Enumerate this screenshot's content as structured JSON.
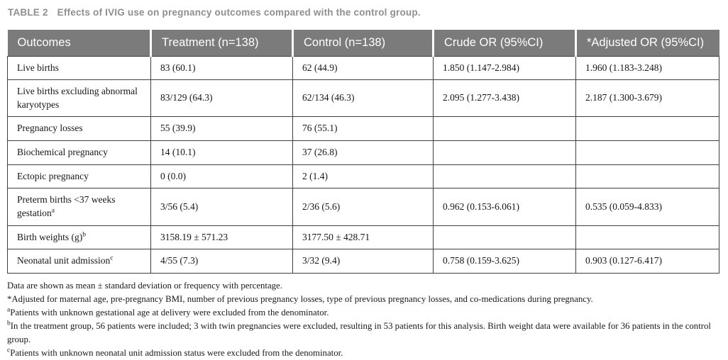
{
  "caption": {
    "label": "TABLE 2",
    "title": "Effects of IVIG use on pregnancy outcomes compared with the control group."
  },
  "table": {
    "columns": [
      "Outcomes",
      "Treatment (n=138)",
      "Control (n=138)",
      "Crude OR (95%CI)",
      "*Adjusted OR (95%CI)"
    ],
    "rows": [
      {
        "outcome": "Live births",
        "sup": "",
        "treatment": "83 (60.1)",
        "control": "62 (44.9)",
        "crude_or": "1.850 (1.147-2.984)",
        "adjusted_or": "1.960 (1.183-3.248)"
      },
      {
        "outcome": "Live births excluding abnormal karyotypes",
        "sup": "",
        "treatment": "83/129 (64.3)",
        "control": "62/134 (46.3)",
        "crude_or": "2.095 (1.277-3.438)",
        "adjusted_or": "2.187 (1.300-3.679)"
      },
      {
        "outcome": "Pregnancy losses",
        "sup": "",
        "treatment": "55 (39.9)",
        "control": "76 (55.1)",
        "crude_or": "",
        "adjusted_or": ""
      },
      {
        "outcome": "Biochemical pregnancy",
        "sup": "",
        "treatment": "14 (10.1)",
        "control": "37 (26.8)",
        "crude_or": "",
        "adjusted_or": ""
      },
      {
        "outcome": "Ectopic pregnancy",
        "sup": "",
        "treatment": "0 (0.0)",
        "control": "2 (1.4)",
        "crude_or": "",
        "adjusted_or": ""
      },
      {
        "outcome": "Preterm births <37 weeks gestation",
        "sup": "a",
        "treatment": "3/56 (5.4)",
        "control": "2/36 (5.6)",
        "crude_or": "0.962 (0.153-6.061)",
        "adjusted_or": "0.535 (0.059-4.833)"
      },
      {
        "outcome": "Birth weights (g)",
        "sup": "b",
        "treatment": "3158.19 ± 571.23",
        "control": "3177.50 ± 428.71",
        "crude_or": "",
        "adjusted_or": ""
      },
      {
        "outcome": "Neonatal unit admission",
        "sup": "c",
        "treatment": "4/55 (7.3)",
        "control": "3/32 (9.4)",
        "crude_or": "0.758 (0.159-3.625)",
        "adjusted_or": "0.903 (0.127-6.417)"
      }
    ]
  },
  "footnotes": [
    {
      "marker": "",
      "text": "Data are shown as mean ± standard deviation or frequency with percentage."
    },
    {
      "marker": "*",
      "text": "Adjusted for maternal age, pre-pregnancy BMI, number of previous pregnancy losses, type of previous pregnancy losses, and co-medications during pregnancy."
    },
    {
      "marker": "a",
      "text": "Patients with unknown gestational age at delivery were excluded from the denominator."
    },
    {
      "marker": "b",
      "text": "In the treatment group, 56 patients were included; 3 with twin pregnancies were excluded, resulting in 53 patients for this analysis. Birth weight data were available for 36 patients in the control group."
    },
    {
      "marker": "c",
      "text": "Patients with unknown neonatal unit admission status were excluded from the denominator."
    }
  ],
  "colors": {
    "header_bg": "#7b7b7b",
    "header_text": "#ffffff",
    "caption_text": "#8f8f8f",
    "border": "#3f3f3f",
    "body_text": "#161616"
  }
}
